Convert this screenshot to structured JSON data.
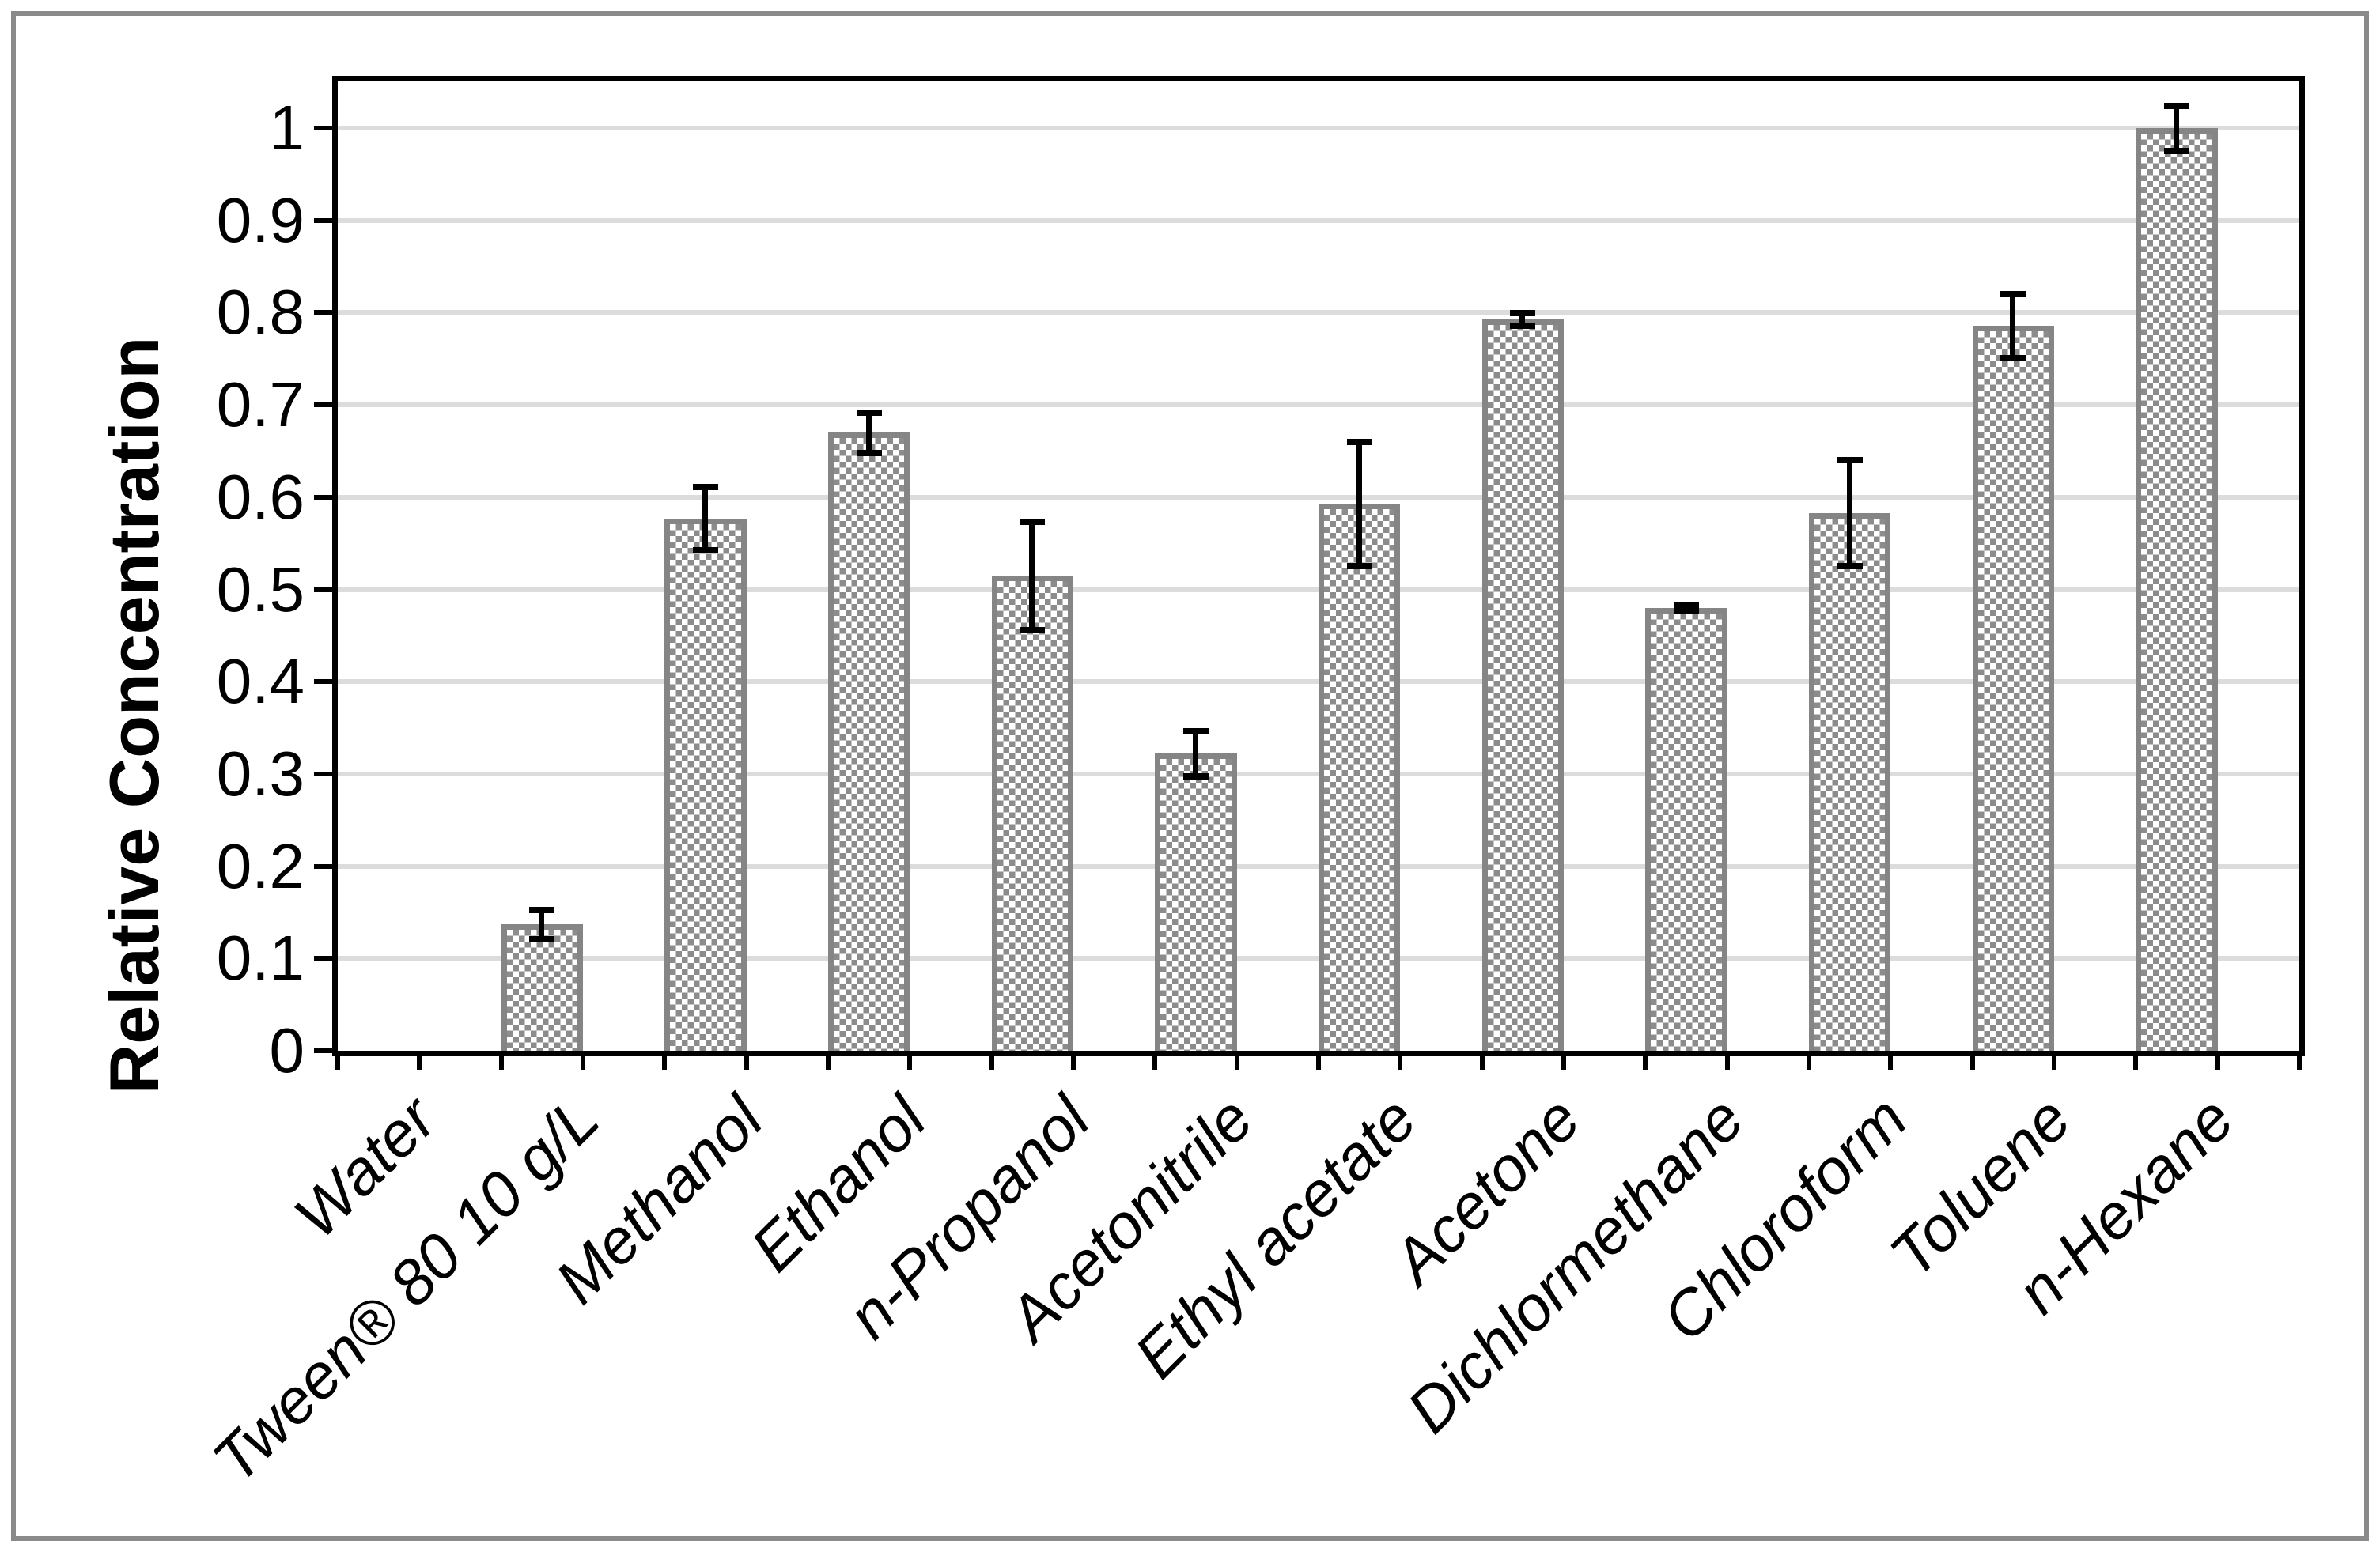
{
  "chart_data": {
    "type": "bar",
    "title": "",
    "xlabel": "",
    "ylabel": "Relative Concentration",
    "ylim": [
      0,
      1.05
    ],
    "ytick_interval": 0.1,
    "ytick_labels": [
      "0",
      "0.1",
      "0.2",
      "0.3",
      "0.4",
      "0.5",
      "0.6",
      "0.7",
      "0.8",
      "0.9",
      "1"
    ],
    "grid": true,
    "legend_position": "none",
    "categories": [
      "Water",
      "Tween® 80 10 g/L",
      "Methanol",
      "Ethanol",
      "n-Propanol",
      "Acetonitrile",
      "Ethyl acetate",
      "Acetone",
      "Dichlormethane",
      "Chloroform",
      "Toluene",
      "n-Hexane"
    ],
    "values": [
      0,
      0.137,
      0.577,
      0.67,
      0.515,
      0.322,
      0.593,
      0.793,
      0.48,
      0.583,
      0.786,
      1.0
    ],
    "errors": [
      0,
      0.016,
      0.035,
      0.022,
      0.059,
      0.025,
      0.068,
      0.007,
      0.003,
      0.058,
      0.035,
      0.025
    ],
    "x_tick_marks_per_category": 2,
    "bar_style": {
      "fill_pattern": "checkerboard",
      "pattern_color": "#8c8c8c",
      "pattern_bg": "#ffffff",
      "border_color": "#858585",
      "bar_slot_fraction": 0.5
    },
    "colors": {
      "axis": "#000000",
      "gridline": "#dcdcdc",
      "error_bar": "#000000",
      "outer_frame": "#8a8a8a",
      "background": "#ffffff"
    }
  }
}
